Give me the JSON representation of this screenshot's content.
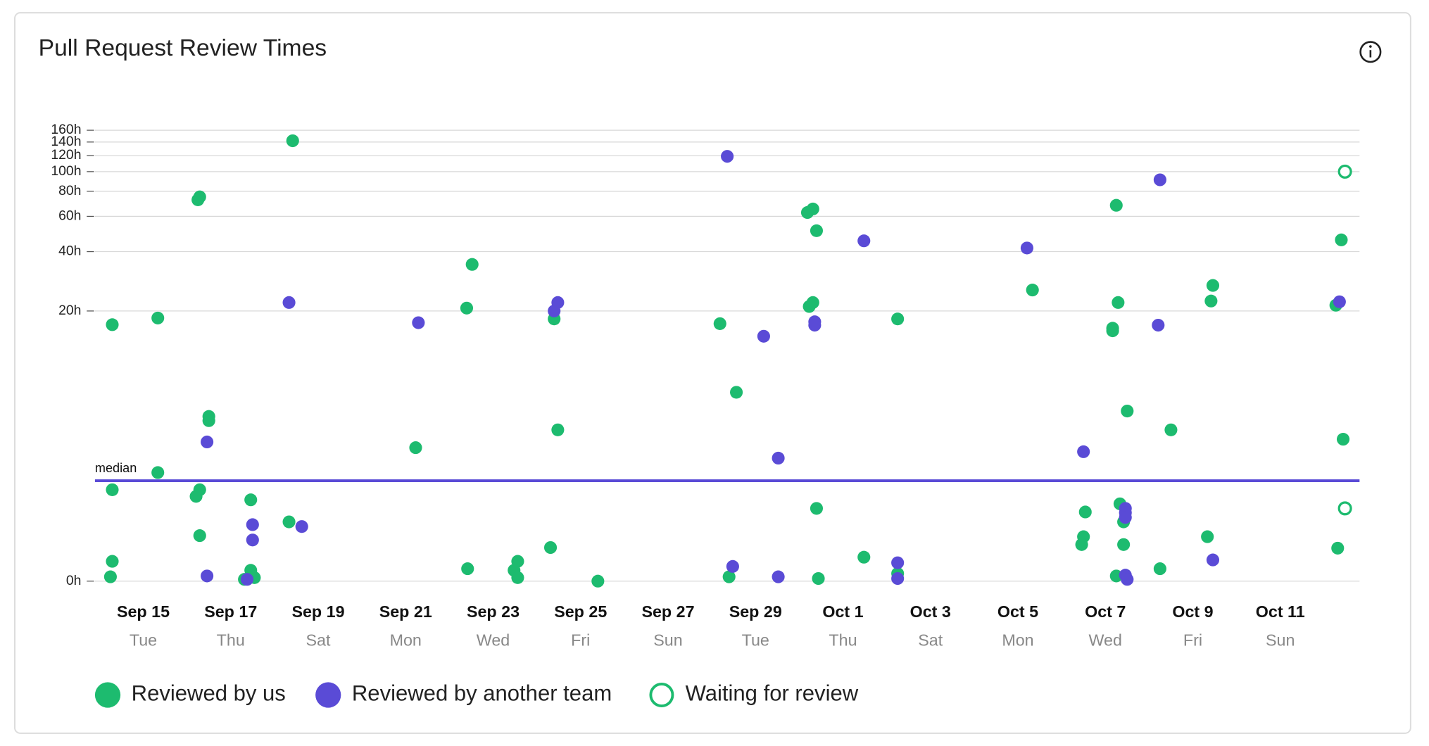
{
  "chart_data": {
    "type": "scatter",
    "title": "Pull Request Review Times",
    "yscale": "log1p",
    "ylim": [
      0,
      160
    ],
    "yticks": [
      {
        "value": 0,
        "label": "0h"
      },
      {
        "value": 20,
        "label": "20h"
      },
      {
        "value": 40,
        "label": "40h"
      },
      {
        "value": 60,
        "label": "60h"
      },
      {
        "value": 80,
        "label": "80h"
      },
      {
        "value": 100,
        "label": "100h"
      },
      {
        "value": 120,
        "label": "120h"
      },
      {
        "value": 140,
        "label": "140h"
      },
      {
        "value": 160,
        "label": "160h"
      }
    ],
    "grid": true,
    "xlim": [
      "Sep 13 21:30",
      "Oct 12 19:30"
    ],
    "xticks": [
      "Sep 15",
      "Sep 17",
      "Sep 19",
      "Sep 21",
      "Sep 23",
      "Sep 25",
      "Sep 27",
      "Sep 29",
      "Oct 1",
      "Oct 3",
      "Oct 5",
      "Oct 7",
      "Oct 9",
      "Oct 11"
    ],
    "xtick_weekdays": [
      "Tue",
      "Thu",
      "Sat",
      "Mon",
      "Wed",
      "Fri",
      "Sun",
      "Tue",
      "Thu",
      "Sat",
      "Mon",
      "Wed",
      "Fri",
      "Sun"
    ],
    "median": {
      "label": "median",
      "value": 2.1,
      "color": "#5a4bd6"
    },
    "legend": "bottom-left",
    "series": [
      {
        "name": "Reviewed by us",
        "color": "#1dbb6f",
        "marker": "filled",
        "x": [
          "Sep 14 07:00",
          "Sep 15 08:00",
          "Sep 16 06:00",
          "Sep 16 07:00",
          "Sep 16 12:00",
          "Sep 16 12:00",
          "Sep 15 08:00",
          "Sep 14 07:00",
          "Sep 16 05:00",
          "Sep 16 07:00",
          "Sep 17 11:00",
          "Sep 14 07:00",
          "Sep 14 06:00",
          "Sep 16 07:00",
          "Sep 17 11:00",
          "Sep 17 07:30",
          "Sep 17 13:00",
          "Sep 18 08:00",
          "Sep 18 10:00",
          "Sep 22 12:30",
          "Sep 22 09:30",
          "Sep 21 05:30",
          "Sep 22 10:00",
          "Sep 23 13:30",
          "Sep 23 11:30",
          "Sep 23 13:30",
          "Sep 24 09:30",
          "Sep 24 11:30",
          "Sep 24 07:30",
          "Sep 25 09:30",
          "Sep 28 04:30",
          "Sep 28 13:30",
          "Sep 28 09:30",
          "Sep 30 04:30",
          "Sep 30 07:30",
          "Sep 30 09:30",
          "Sep 30 05:30",
          "Sep 30 07:30",
          "Sep 30 09:30",
          "Sep 30 10:30",
          "Oct 1 11:30",
          "Oct 2 06:00",
          "Oct 2 06:00",
          "Oct 5 08:00",
          "Oct 7 06:00",
          "Oct 7 07:00",
          "Oct 7 04:00",
          "Oct 7 04:00",
          "Oct 7 12:00",
          "Oct 6 13:00",
          "Oct 6 12:00",
          "Oct 6 11:00",
          "Oct 7 08:00",
          "Oct 7 10:00",
          "Oct 7 10:00",
          "Oct 7 06:00",
          "Oct 8 06:00",
          "Oct 8 12:00",
          "Oct 9 11:00",
          "Oct 9 10:00",
          "Oct 9 08:00",
          "Oct 12 09:30",
          "Oct 12 06:30",
          "Oct 12 10:30",
          "Oct 12 07:30"
        ],
        "values": [
          17,
          18.4,
          72.5,
          75,
          5.4,
          5.1,
          2.4,
          1.8,
          1.6,
          1.8,
          1.5,
          0.25,
          0.05,
          0.67,
          0.13,
          0.02,
          0.04,
          0.95,
          142,
          34.5,
          20.7,
          3.5,
          0.15,
          0.25,
          0.13,
          0.04,
          18.2,
          4.5,
          0.46,
          0,
          17.2,
          7.4,
          0.05,
          62.7,
          65.3,
          50.9,
          21.1,
          22.1,
          1.27,
          0.03,
          0.31,
          18.2,
          0.09,
          25.6,
          68.1,
          22.1,
          16.3,
          15.8,
          5.8,
          1.18,
          0.65,
          0.51,
          1.39,
          0.95,
          0.51,
          0.06,
          0.15,
          4.5,
          27,
          22.5,
          0.65,
          45.8,
          21.4,
          3.95,
          0.45
        ]
      },
      {
        "name": "Reviewed by another team",
        "color": "#5a4bd6",
        "marker": "filled",
        "x": [
          "Sep 16 11:00",
          "Sep 16 11:00",
          "Sep 17 12:00",
          "Sep 17 12:00",
          "Sep 17 09:00",
          "Sep 18 08:00",
          "Sep 18 15:00",
          "Sep 21 07:00",
          "Sep 24 11:30",
          "Sep 24 09:30",
          "Sep 28 08:30",
          "Sep 29 04:30",
          "Sep 29 12:30",
          "Sep 28 11:30",
          "Sep 29 12:30",
          "Sep 30 08:30",
          "Sep 30 08:30",
          "Oct 1 11:30",
          "Oct 2 06:00",
          "Oct 2 06:00",
          "Oct 5 05:00",
          "Oct 6 12:00",
          "Oct 7 11:00",
          "Oct 7 11:00",
          "Oct 7 11:00",
          "Oct 7 11:00",
          "Oct 7 12:00",
          "Oct 8 06:00",
          "Oct 8 05:00",
          "Oct 9 11:00",
          "Oct 12 08:30"
        ],
        "values": [
          3.8,
          0.06,
          0.89,
          0.59,
          0.02,
          22.1,
          0.85,
          17.4,
          22.1,
          20,
          119,
          14.8,
          3,
          0.18,
          0.05,
          17.6,
          16.9,
          45.3,
          0.23,
          0.03,
          41.7,
          3.3,
          1.27,
          1.16,
          1.05,
          0.07,
          0.02,
          91.1,
          16.9,
          0.27,
          22.3
        ]
      },
      {
        "name": "Waiting for review",
        "color": "#1dbb6f",
        "marker": "hollow",
        "x": [
          "Oct 12 11:30",
          "Oct 12 11:30"
        ],
        "values": [
          100,
          1.27
        ]
      }
    ]
  }
}
